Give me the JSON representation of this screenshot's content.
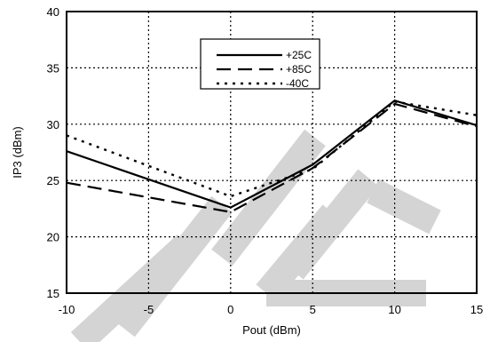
{
  "chart_data": {
    "type": "line",
    "title": "",
    "xlabel": "Pout (dBm)",
    "ylabel": "IP3 (dBm)",
    "xlim": [
      -10,
      15
    ],
    "ylim": [
      15,
      40
    ],
    "xticks": [
      -10,
      -5,
      0,
      5,
      10,
      15
    ],
    "yticks": [
      15,
      20,
      25,
      30,
      35,
      40
    ],
    "x_tick_labels": [
      "-10",
      "-5",
      "0",
      "5",
      "10",
      "15"
    ],
    "y_tick_labels": [
      "15",
      "20",
      "25",
      "30",
      "35",
      "40"
    ],
    "grid": true,
    "legend_position": "top-center",
    "watermark": "LITE",
    "series": [
      {
        "name": "+25C",
        "style": "solid",
        "x": [
          -10,
          0,
          5,
          10,
          15
        ],
        "y": [
          27.6,
          22.6,
          26.4,
          32.1,
          29.9
        ]
      },
      {
        "name": "+85C",
        "style": "dashed",
        "x": [
          -10,
          0,
          5,
          10,
          15
        ],
        "y": [
          24.8,
          22.2,
          26.1,
          31.8,
          29.8
        ]
      },
      {
        "name": "-40C",
        "style": "dotted",
        "x": [
          -10,
          0,
          5,
          10,
          15
        ],
        "y": [
          29.0,
          23.6,
          26.0,
          32.0,
          30.8
        ]
      }
    ]
  }
}
